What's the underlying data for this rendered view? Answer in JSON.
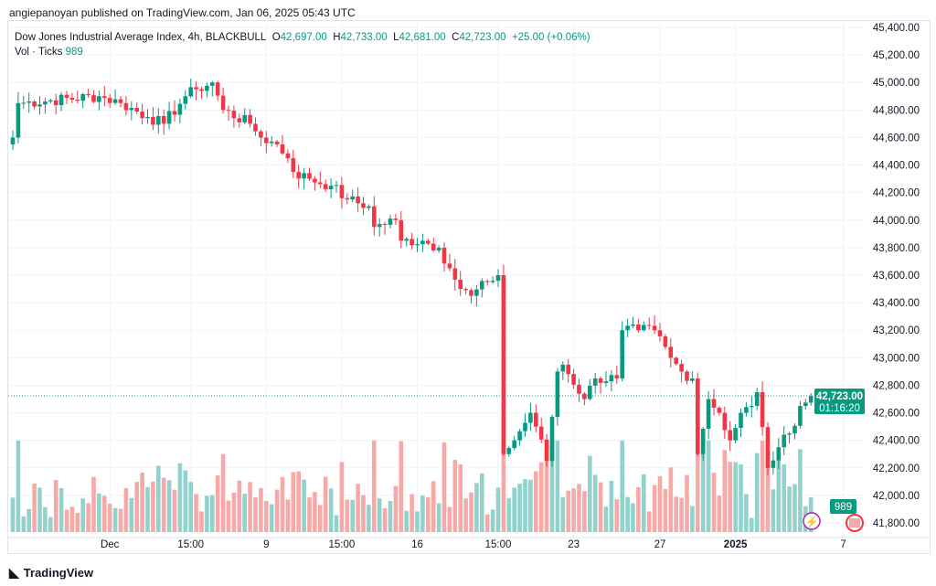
{
  "published": "angiepanoyan published on TradingView.com, Jan 06, 2025 05:43 UTC",
  "legend": {
    "title": "Dow Jones Industrial Average Index, 4h, BLACKBULL",
    "o_label": "O",
    "o": "42,697.00",
    "h_label": "H",
    "h": "42,733.00",
    "l_label": "L",
    "l": "42,681.00",
    "c_label": "C",
    "c": "42,723.00",
    "change": "+25.00 (+0.06%)",
    "vol_label": "Vol · Ticks",
    "vol": "989"
  },
  "price_tag": {
    "price": "42,723.00",
    "countdown": "01:16:20"
  },
  "vol_tag": "989",
  "footer_logo": "TradingView",
  "colors": {
    "up": "#089981",
    "down": "#f23645",
    "up_vol": "#92d2cc",
    "down_vol": "#f7a9a7"
  },
  "chart_data": {
    "type": "candlestick",
    "ylim": [
      41800,
      45400
    ],
    "yticks": [
      "45,400.00",
      "45,200.00",
      "45,000.00",
      "44,800.00",
      "44,600.00",
      "44,400.00",
      "44,200.00",
      "44,000.00",
      "43,800.00",
      "43,600.00",
      "43,400.00",
      "43,200.00",
      "43,000.00",
      "42,800.00",
      "42,600.00",
      "42,400.00",
      "42,200.00",
      "42,000.00",
      "41,800.00"
    ],
    "xticks": [
      {
        "label": "Dec",
        "bar": 18
      },
      {
        "label": "15:00",
        "bar": 33
      },
      {
        "label": "9",
        "bar": 47
      },
      {
        "label": "15:00",
        "bar": 61
      },
      {
        "label": "16",
        "bar": 75
      },
      {
        "label": "15:00",
        "bar": 90
      },
      {
        "label": "23",
        "bar": 104
      },
      {
        "label": "27",
        "bar": 120
      },
      {
        "label": "2025",
        "bar": 134
      },
      {
        "label": "7",
        "bar": 154
      }
    ],
    "close_keypoints": [
      [
        0,
        44600
      ],
      [
        1,
        44850
      ],
      [
        16,
        44900
      ],
      [
        20,
        44850
      ],
      [
        25,
        44750
      ],
      [
        28,
        44700
      ],
      [
        32,
        44900
      ],
      [
        34,
        44950
      ],
      [
        37,
        45000
      ],
      [
        39,
        44800
      ],
      [
        44,
        44700
      ],
      [
        46,
        44600
      ],
      [
        49,
        44550
      ],
      [
        51,
        44450
      ],
      [
        52,
        44350
      ],
      [
        55,
        44300
      ],
      [
        59,
        44250
      ],
      [
        62,
        44150
      ],
      [
        66,
        44100
      ],
      [
        67,
        43950
      ],
      [
        71,
        44000
      ],
      [
        72,
        43850
      ],
      [
        76,
        43850
      ],
      [
        79,
        43800
      ],
      [
        81,
        43650
      ],
      [
        83,
        43500
      ],
      [
        85,
        43450
      ],
      [
        88,
        43550
      ],
      [
        90,
        43600
      ],
      [
        91,
        42300
      ],
      [
        93,
        42400
      ],
      [
        96,
        42600
      ],
      [
        97,
        42500
      ],
      [
        99,
        42250
      ],
      [
        101,
        42900
      ],
      [
        102,
        42950
      ],
      [
        106,
        42700
      ],
      [
        108,
        42850
      ],
      [
        112,
        42850
      ],
      [
        113,
        43200
      ],
      [
        116,
        43200
      ],
      [
        119,
        43200
      ],
      [
        122,
        43000
      ],
      [
        124,
        42900
      ],
      [
        126,
        42850
      ],
      [
        127,
        42300
      ],
      [
        129,
        42700
      ],
      [
        131,
        42600
      ],
      [
        133,
        42400
      ],
      [
        135,
        42600
      ],
      [
        137,
        42650
      ],
      [
        138,
        42750
      ],
      [
        140,
        42200
      ],
      [
        142,
        42350
      ],
      [
        144,
        42450
      ],
      [
        146,
        42650
      ],
      [
        148,
        42723
      ]
    ],
    "last_volume": 989
  }
}
